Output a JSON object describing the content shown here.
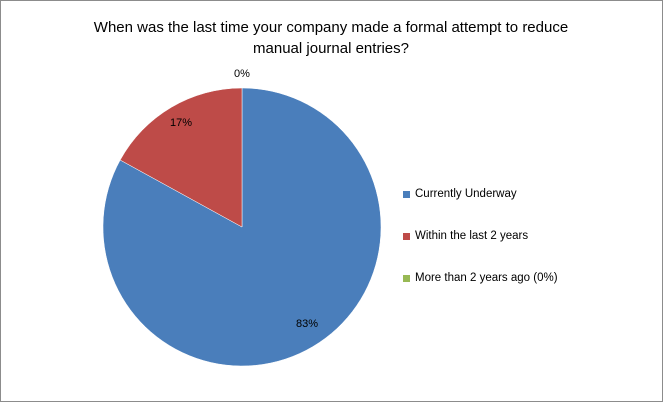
{
  "chart_data": {
    "type": "pie",
    "title": "When was the last time your company made a formal attempt to reduce\nmanual journal entries?",
    "slices": [
      {
        "label": "Currently Underway",
        "value": 83,
        "data_label": "83%",
        "color": "#4a7ebb"
      },
      {
        "label": "Within the last 2 years",
        "value": 17,
        "data_label": "17%",
        "color": "#be4b48"
      },
      {
        "label": "More than 2 years ago (0%)",
        "value": 0,
        "data_label": "0%",
        "color": "#98b954"
      }
    ],
    "start_angle": "12 o'clock",
    "direction": "clockwise",
    "legend_position": "right"
  }
}
